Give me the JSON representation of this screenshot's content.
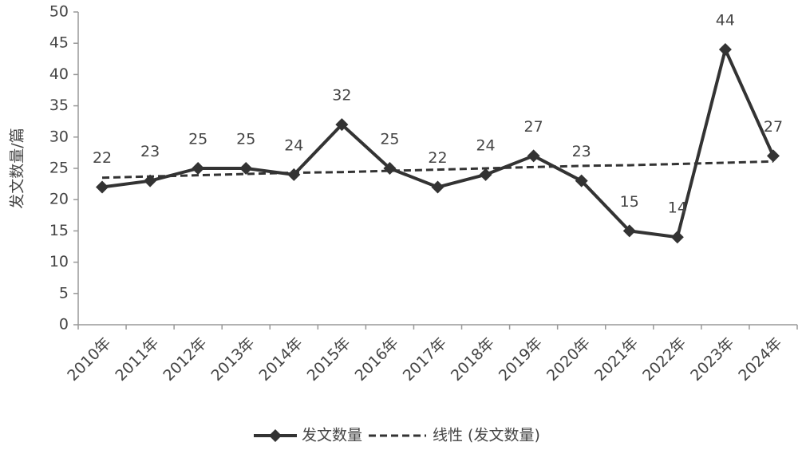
{
  "chart_data": {
    "type": "line",
    "y_label": "发文数量/篇",
    "categories": [
      "2010年",
      "2011年",
      "2012年",
      "2013年",
      "2014年",
      "2015年",
      "2016年",
      "2017年",
      "2018年",
      "2019年",
      "2020年",
      "2021年",
      "2022年",
      "2023年",
      "2024年"
    ],
    "series": [
      {
        "name": "发文数量",
        "color": "#333333",
        "values": [
          22,
          23,
          25,
          25,
          24,
          32,
          25,
          22,
          24,
          27,
          23,
          15,
          14,
          44,
          27
        ]
      },
      {
        "name": "线性 (发文数量)",
        "color": "#333333",
        "dashed": true,
        "values": [
          23.5,
          23.7,
          23.9,
          24.1,
          24.3,
          24.4,
          24.6,
          24.8,
          25.0,
          25.2,
          25.4,
          25.5,
          25.7,
          25.9,
          26.1
        ]
      }
    ],
    "ylim": [
      0,
      50
    ],
    "yticks": [
      0,
      5,
      10,
      15,
      20,
      25,
      30,
      35,
      40,
      45,
      50
    ],
    "grid": false,
    "legend": "bottom"
  }
}
